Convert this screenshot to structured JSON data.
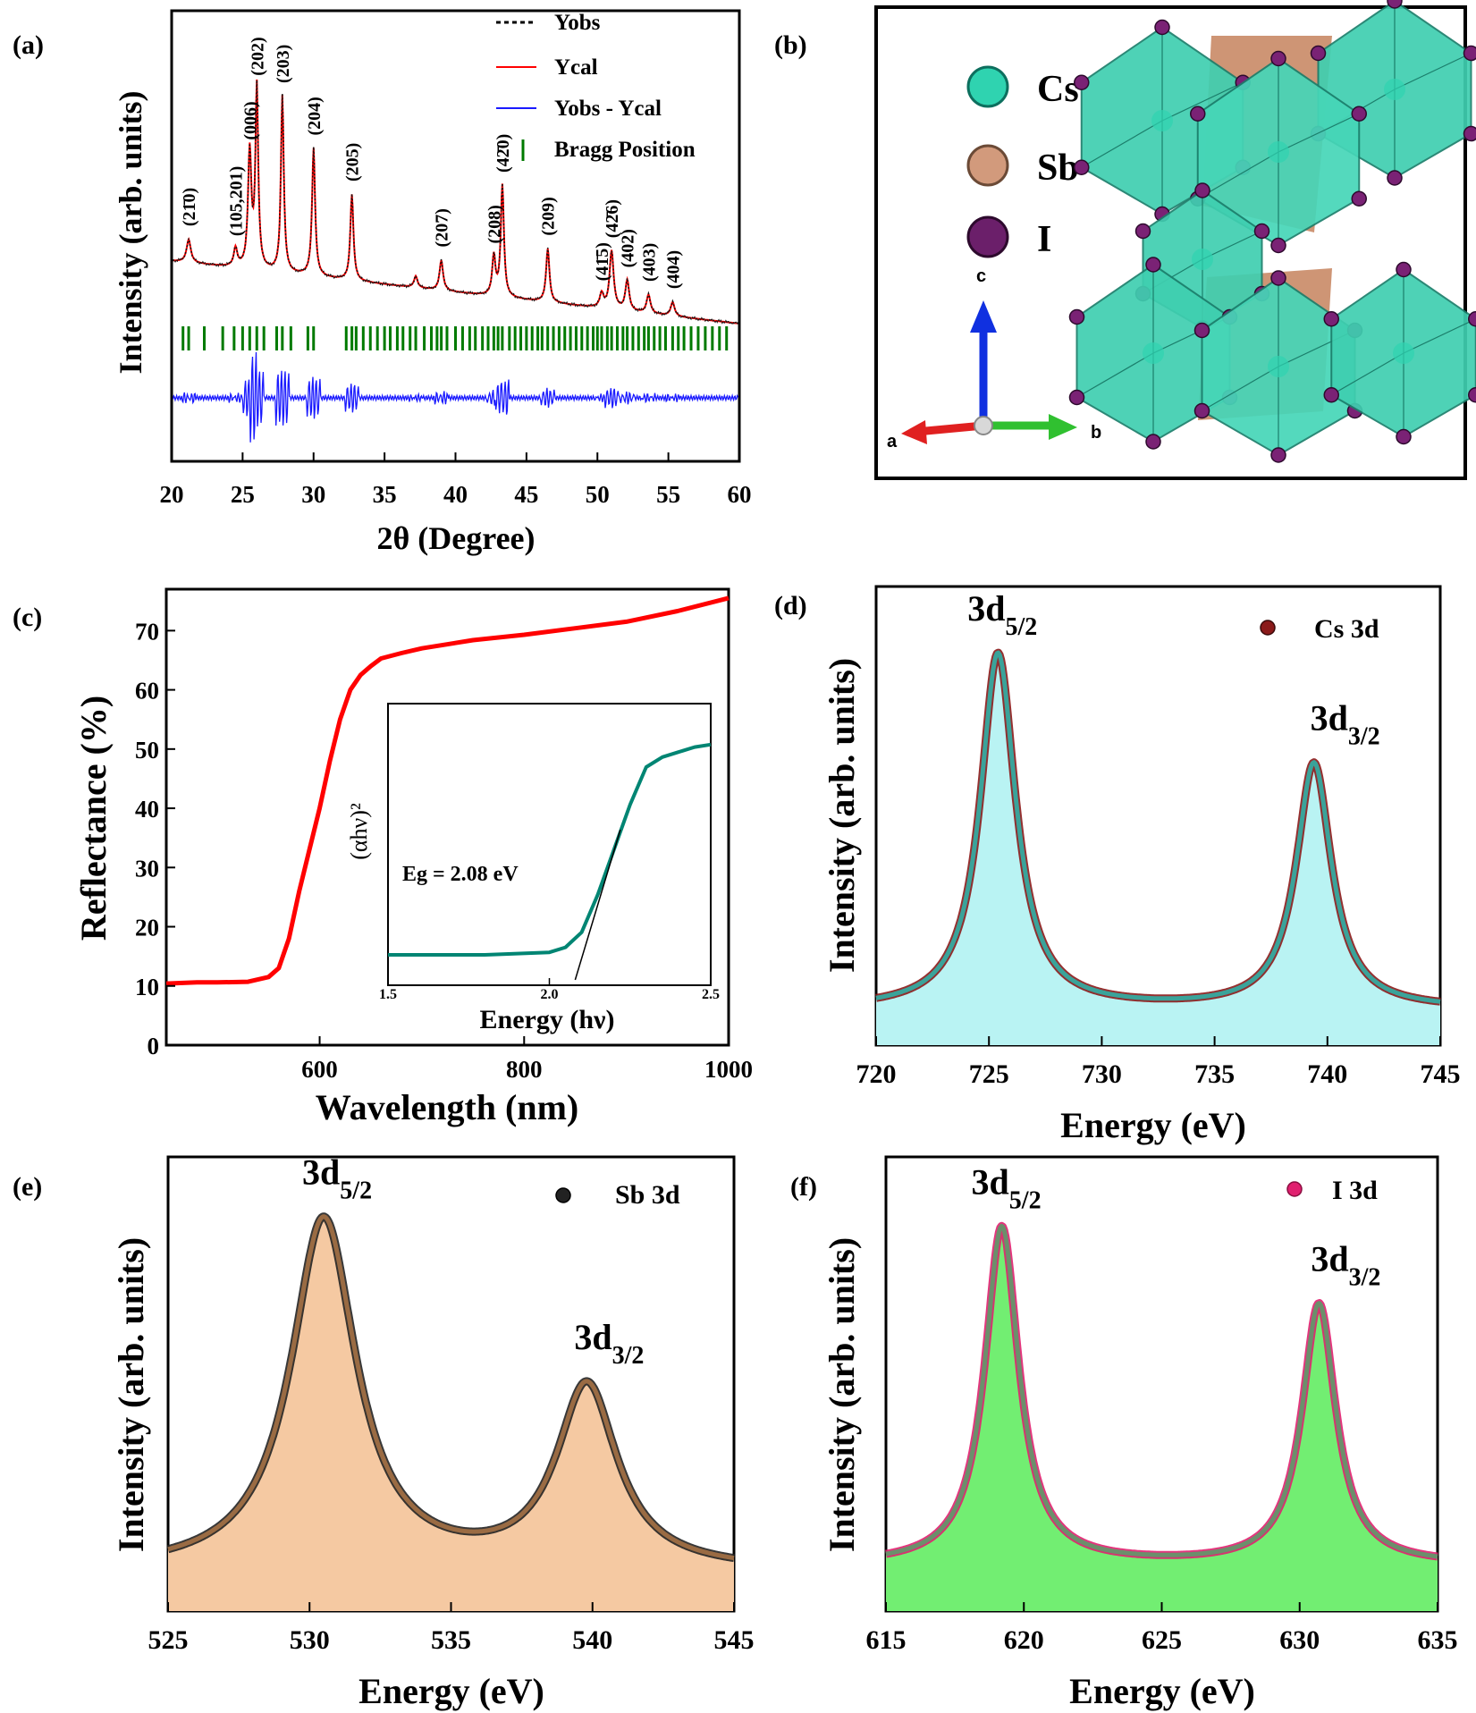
{
  "panels": {
    "a": "(a)",
    "b": "(b)",
    "c": "(c)",
    "d": "(d)",
    "e": "(e)",
    "f": "(f)"
  },
  "structure": {
    "legend": [
      {
        "label": "Cs",
        "color": "#2fd3b0"
      },
      {
        "label": "Sb",
        "color": "#d29a7c"
      },
      {
        "label": "I",
        "color": "#6b1f6a"
      }
    ],
    "axes": {
      "a": "a",
      "b": "b",
      "c": "c"
    }
  },
  "chart_data": [
    {
      "id": "a",
      "type": "line",
      "xlabel": "2θ (Degree)",
      "ylabel": "Intensity (arb. units)",
      "xlim": [
        20,
        60
      ],
      "xticks": [
        20,
        25,
        30,
        35,
        40,
        45,
        50,
        55,
        60
      ],
      "legend": {
        "position": "top-right",
        "entries": [
          {
            "label": "Yobs",
            "color": "#000000"
          },
          {
            "label": "Ycal",
            "color": "#ff0000"
          },
          {
            "label": "Yobs - Ycal",
            "color": "#1a1aff"
          },
          {
            "label": "Bragg Position",
            "color": "#007a00"
          }
        ]
      },
      "peaks": [
        {
          "x": 21.2,
          "h": 0.1,
          "w": 0.18,
          "label": "(21̄0)"
        },
        {
          "x": 24.5,
          "h": 0.08,
          "w": 0.15,
          "label": "(105,201)"
        },
        {
          "x": 25.5,
          "h": 0.5,
          "w": 0.14,
          "label": "(006)"
        },
        {
          "x": 26.0,
          "h": 0.78,
          "w": 0.12,
          "label": "(202)"
        },
        {
          "x": 27.8,
          "h": 0.76,
          "w": 0.12,
          "label": "(203)"
        },
        {
          "x": 30.0,
          "h": 0.55,
          "w": 0.13,
          "label": "(204)"
        },
        {
          "x": 32.7,
          "h": 0.37,
          "w": 0.13,
          "label": "(205)"
        },
        {
          "x": 37.2,
          "h": 0.05,
          "w": 0.15,
          "label": ""
        },
        {
          "x": 39.0,
          "h": 0.13,
          "w": 0.15,
          "label": "(207)"
        },
        {
          "x": 42.7,
          "h": 0.17,
          "w": 0.14,
          "label": "(208)"
        },
        {
          "x": 43.3,
          "h": 0.48,
          "w": 0.13,
          "label": "(42̄0)"
        },
        {
          "x": 46.5,
          "h": 0.23,
          "w": 0.14,
          "label": "(209)"
        },
        {
          "x": 50.3,
          "h": 0.06,
          "w": 0.16,
          "label": "(41̄5)"
        },
        {
          "x": 51.0,
          "h": 0.25,
          "w": 0.17,
          "label": "(42̄6)"
        },
        {
          "x": 52.1,
          "h": 0.13,
          "w": 0.16,
          "label": "(402)"
        },
        {
          "x": 53.6,
          "h": 0.08,
          "w": 0.16,
          "label": "(403)"
        },
        {
          "x": 55.3,
          "h": 0.06,
          "w": 0.16,
          "label": "(404)"
        }
      ],
      "bragg_positions": [
        20.8,
        21.2,
        22.3,
        23.6,
        24.4,
        25.0,
        25.5,
        26.0,
        26.5,
        27.4,
        27.8,
        28.4,
        29.6,
        30.0,
        32.3,
        32.7,
        33.0,
        33.5,
        34.0,
        34.5,
        35.0,
        35.4,
        35.9,
        36.3,
        36.8,
        37.2,
        37.8,
        38.3,
        38.7,
        39.0,
        39.4,
        40.0,
        40.5,
        41.0,
        41.4,
        41.9,
        42.3,
        42.7,
        43.0,
        43.3,
        43.8,
        44.2,
        44.6,
        45.0,
        45.4,
        45.8,
        46.1,
        46.5,
        46.9,
        47.3,
        47.7,
        48.1,
        48.5,
        48.9,
        49.3,
        49.7,
        50.0,
        50.3,
        50.7,
        51.0,
        51.4,
        51.8,
        52.1,
        52.5,
        52.9,
        53.3,
        53.6,
        54.0,
        54.4,
        54.8,
        55.3,
        55.7,
        56.1,
        56.6,
        57.1,
        57.6,
        58.1,
        58.6,
        59.1
      ]
    },
    {
      "id": "c",
      "type": "line",
      "xlabel": "Wavelength (nm)",
      "ylabel": "Reflectance (%)",
      "xlim": [
        450,
        1000
      ],
      "ylim": [
        0,
        77
      ],
      "xticks": [
        600,
        800,
        1000
      ],
      "yticks": [
        0,
        10,
        20,
        30,
        40,
        50,
        60,
        70
      ],
      "color": "#ff0000",
      "x": [
        450,
        480,
        500,
        530,
        550,
        560,
        570,
        580,
        590,
        600,
        610,
        620,
        630,
        640,
        650,
        660,
        680,
        700,
        750,
        800,
        850,
        900,
        950,
        1000
      ],
      "y": [
        10.4,
        10.6,
        10.6,
        10.7,
        11.5,
        13.0,
        18.0,
        26.0,
        33.0,
        40.0,
        48.0,
        55.0,
        60.0,
        62.5,
        64.0,
        65.3,
        66.2,
        67.0,
        68.4,
        69.3,
        70.4,
        71.5,
        73.3,
        75.5
      ],
      "inset": {
        "xlabel": "Energy (hν)",
        "ylabel": "(αhν)²",
        "xlim": [
          1.5,
          2.5
        ],
        "xticks": [
          1.5,
          2.0,
          2.5
        ],
        "annotation": "Eg = 2.08 eV",
        "color": "#008573",
        "x": [
          1.5,
          1.8,
          2.0,
          2.05,
          2.1,
          2.15,
          2.2,
          2.25,
          2.3,
          2.35,
          2.4,
          2.45,
          2.5
        ],
        "y": [
          0.0,
          0.0,
          0.01,
          0.03,
          0.09,
          0.24,
          0.42,
          0.6,
          0.75,
          0.79,
          0.81,
          0.83,
          0.84
        ],
        "tangent": [
          [
            2.08,
            -0.1
          ],
          [
            2.22,
            0.5
          ]
        ]
      }
    },
    {
      "id": "d",
      "type": "scatter",
      "series_name": "Cs 3d",
      "xlabel": "Energy (eV)",
      "ylabel": "Intensity (arb. units)",
      "xlim": [
        720,
        745
      ],
      "xticks": [
        720,
        725,
        730,
        735,
        740,
        745
      ],
      "marker_color": "#8b1a1a",
      "fill_color": "#b9f3f3",
      "fit_color": "#3aa39a",
      "baseline": 0.03,
      "peaks": [
        {
          "x": 725.4,
          "h": 1.0,
          "w": 0.95,
          "label": "3d5/2"
        },
        {
          "x": 739.4,
          "h": 0.69,
          "w": 0.95,
          "label": "3d3/2"
        }
      ]
    },
    {
      "id": "e",
      "type": "scatter",
      "series_name": "Sb 3d",
      "xlabel": "Energy (eV)",
      "ylabel": "Intensity (arb. units)",
      "xlim": [
        525,
        545
      ],
      "xticks": [
        525,
        530,
        535,
        540,
        545
      ],
      "marker_color": "#222222",
      "fill_color": "#f5c9a2",
      "fit_color": "#9a6b43",
      "baseline": 0.04,
      "peaks": [
        {
          "x": 530.5,
          "h": 1.0,
          "w": 1.4,
          "label": "3d5/2"
        },
        {
          "x": 539.8,
          "h": 0.52,
          "w": 1.3,
          "label": "3d3/2"
        }
      ]
    },
    {
      "id": "f",
      "type": "scatter",
      "series_name": "I 3d",
      "xlabel": "Energy (eV)",
      "ylabel": "Intensity (arb. units)",
      "xlim": [
        615,
        635
      ],
      "xticks": [
        615,
        620,
        625,
        630,
        635
      ],
      "marker_color": "#e0206f",
      "fill_color": "#72ee72",
      "fit_color": "#6b8f6b",
      "baseline": 0.06,
      "peaks": [
        {
          "x": 619.2,
          "h": 0.96,
          "w": 0.75,
          "label": "3d5/2"
        },
        {
          "x": 630.7,
          "h": 0.74,
          "w": 0.75,
          "label": "3d3/2"
        }
      ]
    }
  ]
}
